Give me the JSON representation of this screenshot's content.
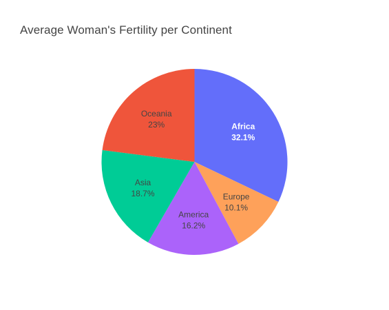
{
  "chart_data": {
    "type": "pie",
    "title": "Average Woman's Fertility per Continent",
    "slices": [
      {
        "label": "Africa",
        "value": 32.1,
        "percent_label": "32.1%",
        "color": "#636efa",
        "text_color": "#ffffff"
      },
      {
        "label": "Europe",
        "value": 10.1,
        "percent_label": "10.1%",
        "color": "#fea15a",
        "text_color": "#444444"
      },
      {
        "label": "America",
        "value": 16.2,
        "percent_label": "16.2%",
        "color": "#ab63fa",
        "text_color": "#444444"
      },
      {
        "label": "Asia",
        "value": 18.7,
        "percent_label": "18.7%",
        "color": "#00cc96",
        "text_color": "#444444"
      },
      {
        "label": "Oceania",
        "value": 23.0,
        "percent_label": "23%",
        "color": "#ef553b",
        "text_color": "#444444"
      }
    ]
  }
}
